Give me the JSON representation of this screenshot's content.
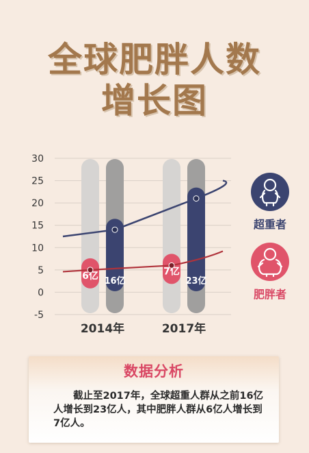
{
  "title": {
    "line1": "全球肥胖人数",
    "line2": "增长图"
  },
  "colors": {
    "background": "#f7ebe1",
    "title": "#a3784d",
    "overweight": "#3b4470",
    "obese": "#e0546a",
    "obese_line": "#b0333b",
    "light_bar": "#d6d4d2",
    "dark_bar": "#a09f9e"
  },
  "legend": {
    "overweight": {
      "label": "超重者",
      "icon": "baby-icon"
    },
    "obese": {
      "label": "肥胖者",
      "icon": "chubby-baby-icon"
    }
  },
  "chart_data": {
    "type": "line",
    "title": "全球肥胖人数增长图",
    "ylim": [
      -5,
      30
    ],
    "yticks": [
      30,
      25,
      20,
      15,
      10,
      5,
      0,
      -5
    ],
    "categories": [
      "2014年",
      "2017年"
    ],
    "series": [
      {
        "name": "超重者",
        "values": [
          16,
          23
        ],
        "labels": [
          "16亿",
          "23亿"
        ],
        "points": [
          [
            2014,
            14
          ],
          [
            2017,
            21
          ]
        ]
      },
      {
        "name": "肥胖者",
        "values": [
          6,
          7
        ],
        "labels": [
          "6亿",
          "7亿"
        ],
        "points": [
          [
            2014,
            5
          ],
          [
            2017,
            6
          ]
        ]
      }
    ]
  },
  "analysis": {
    "title": "数据分析",
    "text": "截止至2017年，全球超重人群从之前16亿人增长到23亿人，其中肥胖人群从6亿人增长到7亿人。"
  }
}
